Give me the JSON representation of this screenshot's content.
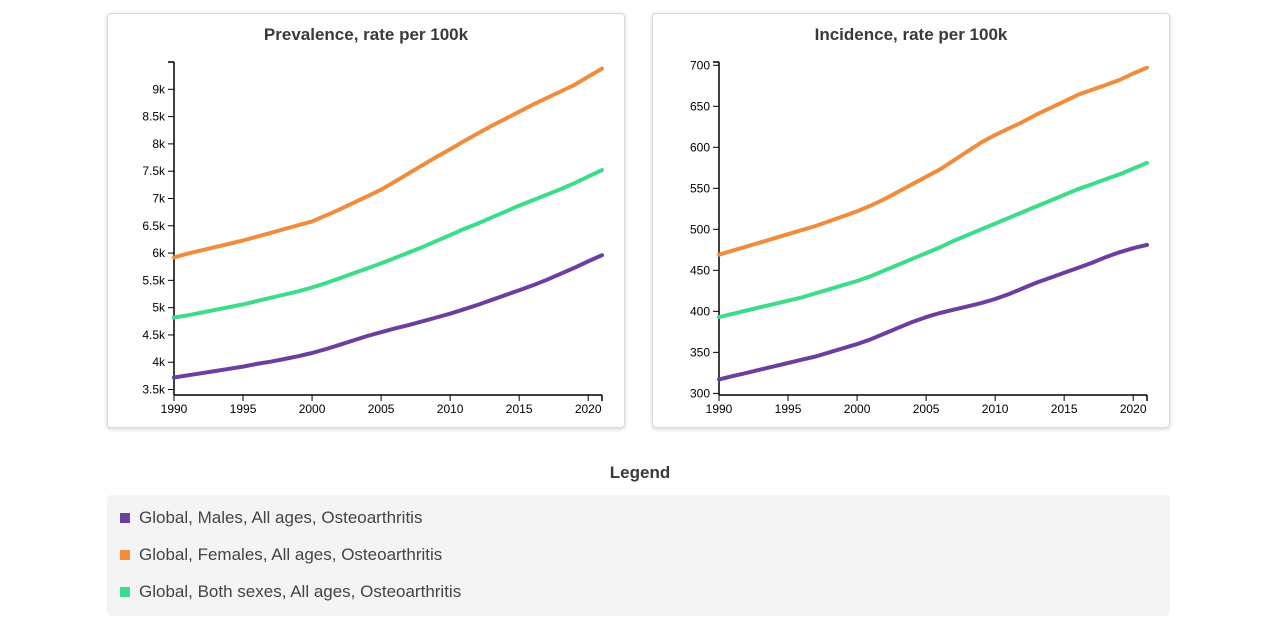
{
  "chart_data": [
    {
      "type": "line",
      "title": "Prevalence, rate per 100k",
      "xlabel": "",
      "ylabel": "",
      "xlim": [
        1990,
        2021
      ],
      "ylim": [
        3400,
        9500
      ],
      "x_ticks": [
        1990,
        1995,
        2000,
        2005,
        2010,
        2015,
        2020
      ],
      "y_ticks": [
        3500,
        4000,
        4500,
        5000,
        5500,
        6000,
        6500,
        7000,
        7500,
        8000,
        8500,
        9000
      ],
      "y_tick_labels": [
        "3.5k",
        "4k",
        "4.5k",
        "5k",
        "5.5k",
        "6k",
        "6.5k",
        "7k",
        "7.5k",
        "8k",
        "8.5k",
        "9k"
      ],
      "x": [
        1990,
        1991,
        1992,
        1993,
        1994,
        1995,
        1996,
        1997,
        1998,
        1999,
        2000,
        2001,
        2002,
        2003,
        2004,
        2005,
        2006,
        2007,
        2008,
        2009,
        2010,
        2011,
        2012,
        2013,
        2014,
        2015,
        2016,
        2017,
        2018,
        2019,
        2020,
        2021
      ],
      "series": [
        {
          "name": "Global, Males, All ages, Osteoarthritis",
          "color": "#6b3fa0",
          "values": [
            3720,
            3760,
            3800,
            3840,
            3880,
            3920,
            3970,
            4010,
            4060,
            4110,
            4170,
            4240,
            4320,
            4400,
            4480,
            4550,
            4620,
            4680,
            4750,
            4820,
            4890,
            4970,
            5050,
            5140,
            5230,
            5320,
            5410,
            5510,
            5620,
            5730,
            5850,
            5960
          ]
        },
        {
          "name": "Global, Females, All ages, Osteoarthritis",
          "color": "#f08c3c",
          "values": [
            5920,
            5990,
            6050,
            6110,
            6170,
            6230,
            6300,
            6370,
            6440,
            6510,
            6580,
            6690,
            6800,
            6920,
            7040,
            7160,
            7310,
            7460,
            7610,
            7760,
            7900,
            8050,
            8190,
            8330,
            8460,
            8590,
            8720,
            8840,
            8960,
            9080,
            9230,
            9380
          ]
        },
        {
          "name": "Global, Both sexes, All ages, Osteoarthritis",
          "color": "#3ddc8a",
          "values": [
            4820,
            4860,
            4910,
            4960,
            5010,
            5060,
            5120,
            5180,
            5240,
            5300,
            5370,
            5450,
            5540,
            5630,
            5720,
            5810,
            5910,
            6010,
            6110,
            6220,
            6330,
            6440,
            6540,
            6650,
            6760,
            6870,
            6970,
            7070,
            7170,
            7280,
            7400,
            7520
          ]
        }
      ]
    },
    {
      "type": "line",
      "title": "Incidence, rate per 100k",
      "xlabel": "",
      "ylabel": "",
      "xlim": [
        1990,
        2021
      ],
      "ylim": [
        298,
        704
      ],
      "x_ticks": [
        1990,
        1995,
        2000,
        2005,
        2010,
        2015,
        2020
      ],
      "y_ticks": [
        300,
        350,
        400,
        450,
        500,
        550,
        600,
        650,
        700
      ],
      "y_tick_labels": [
        "300",
        "350",
        "400",
        "450",
        "500",
        "550",
        "600",
        "650",
        "700"
      ],
      "x": [
        1990,
        1991,
        1992,
        1993,
        1994,
        1995,
        1996,
        1997,
        1998,
        1999,
        2000,
        2001,
        2002,
        2003,
        2004,
        2005,
        2006,
        2007,
        2008,
        2009,
        2010,
        2011,
        2012,
        2013,
        2014,
        2015,
        2016,
        2017,
        2018,
        2019,
        2020,
        2021
      ],
      "series": [
        {
          "name": "Global, Males, All ages, Osteoarthritis",
          "color": "#6b3fa0",
          "values": [
            317,
            321,
            325,
            329,
            333,
            337,
            341,
            345,
            350,
            355,
            360,
            366,
            373,
            380,
            387,
            393,
            398,
            402,
            406,
            410,
            415,
            421,
            428,
            435,
            441,
            447,
            453,
            459,
            466,
            472,
            477,
            481
          ]
        },
        {
          "name": "Global, Females, All ages, Osteoarthritis",
          "color": "#f08c3c",
          "values": [
            469,
            474,
            479,
            484,
            489,
            494,
            499,
            504,
            510,
            516,
            522,
            529,
            537,
            546,
            555,
            564,
            573,
            584,
            595,
            606,
            615,
            623,
            631,
            640,
            648,
            656,
            664,
            670,
            676,
            682,
            690,
            697
          ]
        },
        {
          "name": "Global, Both sexes, All ages, Osteoarthritis",
          "color": "#3ddc8a",
          "values": [
            393,
            397,
            401,
            405,
            409,
            413,
            417,
            422,
            427,
            432,
            437,
            443,
            450,
            457,
            464,
            471,
            478,
            486,
            493,
            500,
            507,
            514,
            521,
            528,
            535,
            542,
            549,
            555,
            561,
            567,
            574,
            581
          ]
        }
      ]
    }
  ],
  "legend": {
    "title": "Legend",
    "items": [
      {
        "label": "Global, Males, All ages, Osteoarthritis",
        "color": "#6b3fa0"
      },
      {
        "label": "Global, Females, All ages, Osteoarthritis",
        "color": "#f08c3c"
      },
      {
        "label": "Global, Both sexes, All ages, Osteoarthritis",
        "color": "#3ddc8a"
      }
    ]
  }
}
